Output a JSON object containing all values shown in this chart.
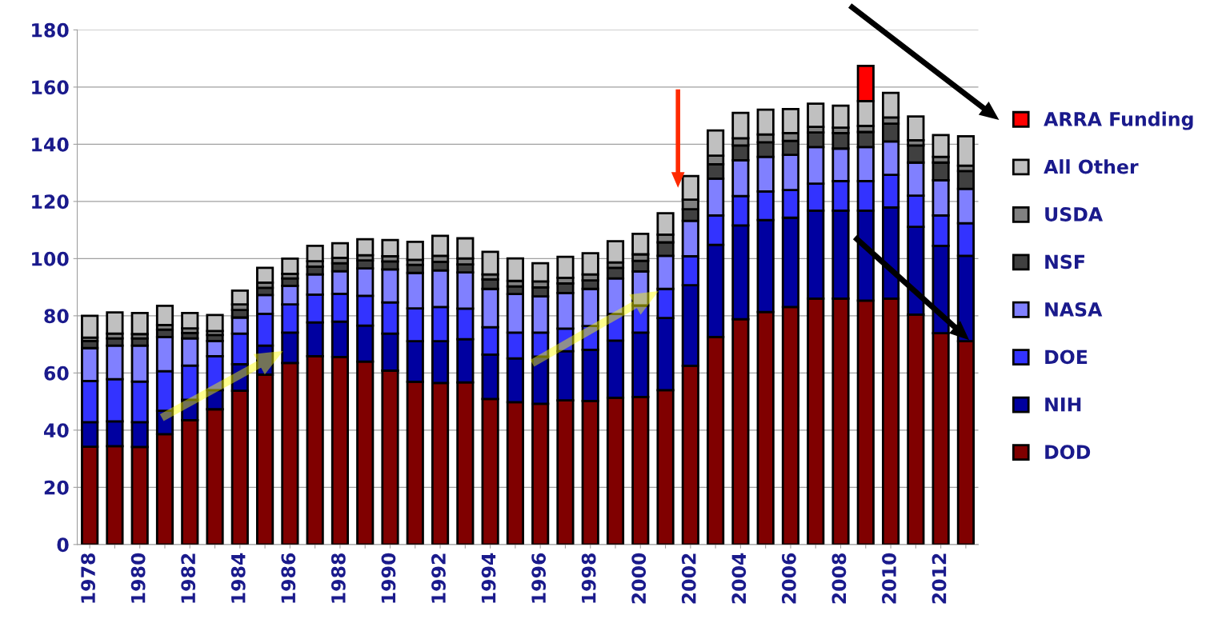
{
  "chart_data": {
    "type": "bar",
    "stacked": true,
    "categories": [
      "1978",
      null,
      "1980",
      null,
      "1982",
      null,
      "1984",
      null,
      "1986",
      null,
      "1988",
      null,
      "1990",
      null,
      "1992",
      null,
      "1994",
      null,
      "1996",
      null,
      "1998",
      null,
      "2000",
      null,
      "2002",
      null,
      "2004",
      null,
      "2006",
      null,
      "2008",
      null,
      "2010",
      null,
      "2012",
      null
    ],
    "series": [
      {
        "name": "DOD",
        "color": "#800000",
        "values": [
          34.2,
          34.4,
          34.1,
          38.6,
          43.5,
          47.3,
          53.8,
          59.4,
          63.5,
          65.9,
          65.6,
          64.0,
          60.8,
          56.9,
          56.5,
          56.7,
          50.9,
          49.8,
          49.2,
          50.4,
          50.2,
          51.3,
          51.6,
          54.0,
          62.5,
          72.6,
          78.8,
          81.3,
          83.1,
          86.0,
          86.0,
          85.3,
          86.0,
          80.4,
          73.9,
          71.1
        ]
      },
      {
        "name": "NIH",
        "color": "#0000a0",
        "values": [
          8.6,
          8.7,
          8.7,
          8.2,
          7.1,
          6.7,
          9.3,
          10.2,
          10.6,
          11.8,
          12.4,
          12.6,
          13.0,
          14.2,
          14.6,
          15.1,
          15.5,
          15.3,
          16.5,
          17.2,
          17.9,
          20.0,
          22.5,
          25.2,
          28.2,
          32.2,
          32.8,
          32.2,
          31.2,
          30.8,
          30.8,
          31.5,
          31.9,
          30.7,
          30.6,
          29.9
        ]
      },
      {
        "name": "DOE",
        "color": "#3333ff",
        "values": [
          14.4,
          14.7,
          14.2,
          13.8,
          12.0,
          11.9,
          10.7,
          11.1,
          9.9,
          9.7,
          9.7,
          10.4,
          10.9,
          11.5,
          12.0,
          10.7,
          9.6,
          9.0,
          8.4,
          7.9,
          8.3,
          9.3,
          9.5,
          10.2,
          10.1,
          10.3,
          10.3,
          10.0,
          9.7,
          9.4,
          10.3,
          10.3,
          11.4,
          10.9,
          10.6,
          11.4
        ]
      },
      {
        "name": "NASA",
        "color": "#8080ff",
        "values": [
          11.5,
          11.8,
          12.6,
          12.0,
          9.5,
          5.3,
          5.6,
          6.6,
          6.5,
          7.1,
          7.9,
          9.6,
          11.5,
          12.4,
          12.8,
          12.7,
          13.4,
          13.5,
          12.7,
          12.5,
          13.0,
          12.5,
          11.9,
          11.6,
          12.4,
          12.9,
          12.5,
          12.1,
          12.3,
          12.8,
          11.4,
          11.9,
          11.7,
          11.6,
          12.3,
          12.0
        ]
      },
      {
        "name": "NSF",
        "color": "#404040",
        "values": [
          2.5,
          2.5,
          2.5,
          2.6,
          1.9,
          2.1,
          2.6,
          2.5,
          2.6,
          2.7,
          2.8,
          2.8,
          2.8,
          2.8,
          3.0,
          2.8,
          3.3,
          2.7,
          3.1,
          3.3,
          3.0,
          3.7,
          3.7,
          4.7,
          4.1,
          5.0,
          5.2,
          5.1,
          4.9,
          5.1,
          5.4,
          5.3,
          6.2,
          6.0,
          6.2,
          6.2
        ]
      },
      {
        "name": "USDA",
        "color": "#808080",
        "values": [
          1.2,
          1.7,
          1.5,
          1.6,
          1.6,
          1.4,
          2.0,
          1.8,
          1.6,
          1.9,
          1.9,
          1.8,
          1.8,
          1.8,
          2.1,
          2.1,
          1.8,
          1.9,
          2.1,
          2.0,
          2.1,
          1.9,
          2.3,
          2.7,
          3.3,
          3.0,
          2.5,
          2.7,
          2.7,
          2.0,
          1.9,
          2.1,
          2.2,
          1.8,
          2.0,
          1.9
        ]
      },
      {
        "name": "All Other",
        "color": "#c0c0c0",
        "values": [
          7.6,
          7.4,
          7.4,
          6.7,
          5.4,
          5.6,
          4.8,
          5.2,
          5.3,
          5.4,
          5.1,
          5.6,
          5.7,
          6.3,
          7.0,
          7.0,
          7.9,
          7.9,
          6.4,
          7.3,
          7.4,
          7.4,
          7.2,
          7.5,
          8.3,
          8.8,
          8.9,
          8.7,
          8.4,
          8.1,
          7.7,
          8.7,
          8.6,
          8.3,
          7.6,
          10.3
        ]
      },
      {
        "name": "ARRA Funding",
        "color": "#ff0000",
        "values": [
          null,
          null,
          null,
          null,
          null,
          null,
          null,
          null,
          null,
          null,
          null,
          null,
          null,
          null,
          null,
          null,
          null,
          null,
          null,
          null,
          null,
          null,
          null,
          null,
          null,
          null,
          null,
          null,
          null,
          null,
          null,
          12.3,
          null,
          null,
          null,
          null
        ]
      }
    ],
    "ylim": [
      0,
      180
    ],
    "yticks": [
      0,
      20,
      40,
      60,
      80,
      100,
      120,
      140,
      160,
      180
    ],
    "grid": "y",
    "legend": "right"
  }
}
